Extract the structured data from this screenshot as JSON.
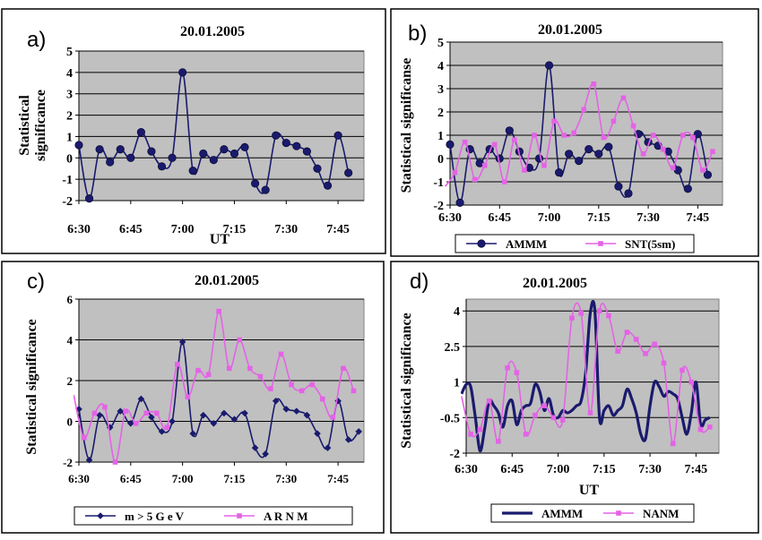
{
  "colors": {
    "series_navy": "#1a1a6e",
    "series_magenta": "#e463e6",
    "plot_background": "#c0c0c0"
  },
  "chart_data": [
    {
      "panel": "a)",
      "type": "line",
      "title": "20.01.2005",
      "xlabel": "UT",
      "ylabel": "Statistical significance",
      "ylim": [
        -2,
        5
      ],
      "yticks": [
        "-2",
        "-1",
        "0",
        "1",
        "2",
        "3",
        "4",
        "5"
      ],
      "xticks": [
        "6:30",
        "6:45",
        "7:00",
        "7:15",
        "7:30",
        "7:45"
      ],
      "legend": "none",
      "grid": "horizontal",
      "series": [
        {
          "color": "#1a1a6e",
          "marker": "circle",
          "x": [
            0,
            2,
            4,
            6,
            8,
            10,
            12,
            14,
            16,
            18,
            20,
            22,
            24,
            26,
            28,
            30,
            32,
            34,
            36,
            38,
            40,
            42,
            44,
            46,
            48,
            50,
            52
          ],
          "values": [
            0.6,
            -1.9,
            0.4,
            -0.2,
            0.4,
            0.0,
            1.2,
            0.3,
            -0.4,
            0.0,
            4.0,
            -0.6,
            0.2,
            -0.1,
            0.4,
            0.2,
            0.5,
            -1.2,
            -1.5,
            1.05,
            0.7,
            0.55,
            0.3,
            -0.5,
            -1.3,
            1.05,
            -0.7
          ]
        }
      ]
    },
    {
      "panel": "b)",
      "type": "line",
      "title": "20.01.2005",
      "xlabel": "",
      "ylabel": "Statistical significanse",
      "ylim": [
        -2,
        5
      ],
      "yticks": [
        "-2",
        "-1",
        "0",
        "1",
        "2",
        "3",
        "4",
        "5"
      ],
      "xticks": [
        "6:30",
        "6:45",
        "7:00",
        "7:15",
        "7:30",
        "7:45"
      ],
      "legend": "bottom",
      "grid": "horizontal",
      "series": [
        {
          "name": "AMMM",
          "color": "#1a1a6e",
          "marker": "circle",
          "x": [
            0,
            2,
            4,
            6,
            8,
            10,
            12,
            14,
            16,
            18,
            20,
            22,
            24,
            26,
            28,
            30,
            32,
            34,
            36,
            38,
            40,
            42,
            44,
            46,
            48,
            50,
            52
          ],
          "values": [
            0.6,
            -1.9,
            0.4,
            -0.2,
            0.4,
            0.0,
            1.2,
            0.3,
            -0.4,
            0.0,
            4.0,
            -0.6,
            0.2,
            -0.1,
            0.4,
            0.2,
            0.5,
            -1.2,
            -1.5,
            1.05,
            0.7,
            0.55,
            0.3,
            -0.5,
            -1.3,
            1.05,
            -0.7
          ]
        },
        {
          "name": "SNT(5sm)",
          "color": "#e463e6",
          "marker": "square",
          "x": [
            -1,
            1,
            3,
            5,
            7,
            9,
            11,
            13,
            15,
            17,
            19,
            21,
            23,
            25,
            27,
            29,
            31,
            33,
            35,
            37,
            39,
            41,
            43,
            45,
            47,
            49,
            51,
            53
          ],
          "values": [
            -1.2,
            -0.6,
            0.7,
            -0.9,
            -0.3,
            0.6,
            -1.0,
            0.8,
            -0.5,
            1.0,
            -0.3,
            1.6,
            1.0,
            1.1,
            2.1,
            3.2,
            0.9,
            1.6,
            2.6,
            1.4,
            0.2,
            1.0,
            0.4,
            -0.4,
            1.0,
            0.9,
            -0.5,
            0.3
          ]
        }
      ]
    },
    {
      "panel": "c)",
      "type": "line",
      "title": "20.01.2005",
      "xlabel": "",
      "ylabel": "Statistical significance",
      "ylim": [
        -2,
        6
      ],
      "yticks": [
        "-2",
        "0",
        "2",
        "4",
        "6"
      ],
      "xticks": [
        "6:30",
        "6:45",
        "7:00",
        "7:15",
        "7:30",
        "7:45"
      ],
      "legend": "bottom",
      "grid": "horizontal",
      "series": [
        {
          "name": "m > 5 G e V",
          "color": "#1a1a6e",
          "marker": "diamond",
          "x": [
            0,
            2,
            4,
            6,
            8,
            10,
            12,
            14,
            16,
            18,
            20,
            22,
            24,
            26,
            28,
            30,
            32,
            34,
            36,
            38,
            40,
            42,
            44,
            46,
            48,
            50,
            52,
            54
          ],
          "values": [
            0.6,
            -1.9,
            0.3,
            -0.3,
            0.5,
            -0.1,
            1.1,
            0.2,
            -0.5,
            0.0,
            3.9,
            -0.6,
            0.3,
            -0.1,
            0.4,
            0.1,
            0.4,
            -1.3,
            -1.6,
            1.0,
            0.6,
            0.5,
            0.3,
            -0.6,
            -1.3,
            1.0,
            -0.9,
            -0.5
          ]
        },
        {
          "name": "A R N M",
          "color": "#e463e6",
          "marker": "square",
          "x": [
            -1,
            1,
            3,
            5,
            7,
            9,
            11,
            13,
            15,
            17,
            19,
            21,
            23,
            25,
            27,
            29,
            31,
            33,
            35,
            37,
            39,
            41,
            43,
            45,
            47,
            49,
            51,
            53
          ],
          "values": [
            1.3,
            -0.8,
            0.4,
            0.7,
            -2.0,
            0.5,
            -0.1,
            0.4,
            0.4,
            -0.3,
            2.8,
            1.2,
            2.5,
            2.3,
            5.4,
            2.6,
            4.0,
            2.6,
            2.2,
            1.6,
            3.3,
            1.8,
            1.5,
            1.8,
            1.1,
            0.2,
            2.6,
            1.5
          ]
        }
      ]
    },
    {
      "panel": "d)",
      "type": "line",
      "title": "20.01.2005",
      "xlabel": "UT",
      "ylabel": "Statistical significance",
      "ylim": [
        -2,
        4.5
      ],
      "yticks": [
        "-2",
        "-0.5",
        "1",
        "2.5",
        "4"
      ],
      "xticks": [
        "6:30",
        "6:45",
        "7:00",
        "7:15",
        "7:30",
        "7:45"
      ],
      "legend": "bottom",
      "grid": "horizontal",
      "series": [
        {
          "name": "AMMM",
          "color": "#1a1a6e",
          "marker": "none",
          "x": [
            -1,
            0,
            1,
            2,
            3,
            4,
            5,
            6,
            7,
            8,
            9,
            10,
            11,
            12,
            13,
            14,
            15,
            16,
            17,
            18,
            19,
            20,
            21,
            22,
            23,
            24,
            25,
            26,
            27,
            28,
            29,
            30,
            31,
            32,
            33,
            34,
            35,
            36,
            37,
            38,
            39,
            40,
            41,
            42,
            43,
            44,
            45,
            46,
            47,
            48,
            49,
            50,
            51,
            52,
            53
          ],
          "values": [
            0.5,
            0.9,
            0.8,
            -0.5,
            -1.9,
            -1.0,
            0.2,
            0.0,
            -0.3,
            -0.9,
            0.0,
            0.2,
            -0.8,
            -0.2,
            0.0,
            0.1,
            0.9,
            0.6,
            -0.2,
            0.3,
            -0.4,
            -0.5,
            -0.2,
            -0.3,
            -0.2,
            0.0,
            0.2,
            1.4,
            3.9,
            4.0,
            -0.5,
            -0.2,
            0.0,
            -0.4,
            -0.2,
            0.0,
            0.7,
            0.3,
            -0.3,
            -1.2,
            -1.4,
            0.0,
            1.0,
            0.8,
            0.4,
            0.6,
            0.5,
            0.3,
            -0.5,
            -1.2,
            -0.3,
            1.0,
            -0.8,
            -0.6,
            -0.5
          ]
        },
        {
          "name": "NANM",
          "color": "#e463e6",
          "marker": "square",
          "x": [
            -1,
            1,
            3,
            5,
            7,
            9,
            11,
            13,
            15,
            17,
            19,
            21,
            23,
            25,
            27,
            29,
            31,
            33,
            35,
            37,
            39,
            41,
            43,
            45,
            47,
            49,
            51,
            53
          ],
          "values": [
            0.4,
            -1.2,
            -1.0,
            0.2,
            -1.5,
            1.6,
            1.4,
            -1.2,
            -0.4,
            0.0,
            -0.5,
            -0.6,
            3.7,
            3.9,
            -0.3,
            4.0,
            3.8,
            2.3,
            3.1,
            2.8,
            2.2,
            2.6,
            1.8,
            -1.6,
            1.5,
            1.0,
            -1.0,
            -0.9
          ]
        }
      ]
    }
  ]
}
